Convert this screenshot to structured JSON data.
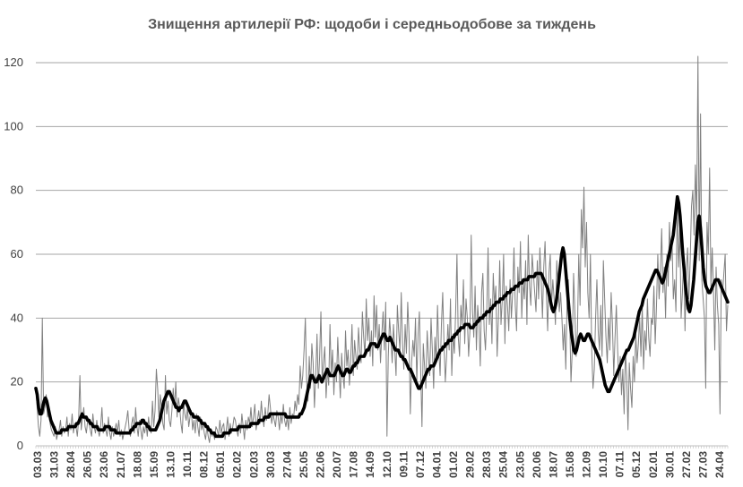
{
  "chart_data": {
    "type": "line",
    "title": "Знищення артилерії РФ: щодоби і середньодобове за тиждень",
    "xlabel": "",
    "ylabel": "",
    "ylim": [
      0,
      120
    ],
    "yticks": [
      "0",
      "20",
      "40",
      "60",
      "80",
      "100",
      "120"
    ],
    "grid": "horizontal",
    "legend": "none",
    "x_tick_labels": [
      "03.03",
      "31.03",
      "28.04",
      "26.05",
      "23.06",
      "21.07",
      "18.08",
      "15.09",
      "13.10",
      "10.11",
      "08.12",
      "05.01",
      "02.02",
      "02.03",
      "30.03",
      "27.04",
      "25.05",
      "22.06",
      "20.07",
      "17.08",
      "14.09",
      "12.10",
      "09.11",
      "07.12",
      "04.01",
      "01.02",
      "29.02",
      "28.03",
      "25.04",
      "23.05",
      "20.06",
      "18.07",
      "15.08",
      "12.09",
      "10.10",
      "07.11",
      "05.12",
      "02.01",
      "30.01",
      "27.02",
      "27.03",
      "24.04"
    ],
    "series": [
      {
        "role": "daily",
        "color": "#808080",
        "values": [
          18,
          12,
          6,
          3,
          8,
          40,
          10,
          12,
          16,
          9,
          11,
          7,
          5,
          4,
          3,
          6,
          2,
          4,
          5,
          8,
          3,
          6,
          4,
          5,
          9,
          3,
          7,
          5,
          10,
          4,
          7,
          6,
          3,
          8,
          22,
          5,
          9,
          12,
          6,
          4,
          8,
          7,
          5,
          3,
          10,
          6,
          4,
          8,
          5,
          3,
          6,
          12,
          4,
          7,
          5,
          3,
          9,
          4,
          2,
          6,
          3,
          5,
          7,
          4,
          8,
          3,
          5,
          2,
          4,
          6,
          8,
          11,
          5,
          3,
          7,
          9,
          4,
          12,
          6,
          3,
          8,
          5,
          2,
          6,
          4,
          7,
          3,
          9,
          5,
          4,
          14,
          6,
          11,
          24,
          18,
          9,
          16,
          12,
          7,
          5,
          22,
          10,
          14,
          8,
          6,
          11,
          18,
          12,
          20,
          9,
          15,
          12,
          7,
          4,
          14,
          10,
          8,
          12,
          6,
          9,
          11,
          5,
          8,
          4,
          10,
          6,
          3,
          9,
          5,
          7,
          4,
          2,
          6,
          3,
          1,
          5,
          3,
          4,
          2,
          6,
          5,
          3,
          8,
          4,
          6,
          7,
          2,
          5,
          9,
          3,
          7,
          4,
          6,
          9,
          8,
          5,
          3,
          7,
          4,
          10,
          6,
          2,
          8,
          5,
          9,
          7,
          12,
          6,
          9,
          13,
          5,
          8,
          11,
          7,
          14,
          9,
          6,
          12,
          8,
          10,
          16,
          12,
          7,
          10,
          8,
          6,
          11,
          9,
          5,
          10,
          7,
          13,
          8,
          6,
          9,
          5,
          12,
          7,
          10,
          9,
          14,
          11,
          16,
          13,
          25,
          18,
          22,
          30,
          40,
          20,
          14,
          28,
          18,
          32,
          26,
          12,
          22,
          35,
          18,
          28,
          42,
          20,
          26,
          31,
          15,
          24,
          19,
          38,
          22,
          30,
          16,
          26,
          20,
          34,
          24,
          15,
          29,
          22,
          18,
          36,
          25,
          30,
          19,
          27,
          38,
          22,
          33,
          28,
          24,
          37,
          30,
          26,
          42,
          34,
          28,
          46,
          33,
          40,
          28,
          36,
          25,
          47,
          34,
          44,
          30,
          38,
          26,
          35,
          42,
          30,
          45,
          3,
          28,
          40,
          34,
          26,
          38,
          30,
          22,
          44,
          36,
          30,
          48,
          32,
          24,
          38,
          29,
          45,
          35,
          10,
          26,
          33,
          28,
          40,
          20,
          35,
          42,
          24,
          6,
          32,
          25,
          18,
          36,
          28,
          22,
          40,
          30,
          18,
          34,
          26,
          44,
          30,
          22,
          38,
          48,
          32,
          20,
          28,
          38,
          30,
          46,
          22,
          35,
          29,
          42,
          60,
          34,
          28,
          44,
          38,
          52,
          32,
          46,
          40,
          28,
          36,
          66,
          42,
          34,
          50,
          30,
          44,
          38,
          25,
          48,
          54,
          36,
          30,
          42,
          62,
          38,
          46,
          32,
          54,
          44,
          50,
          28,
          40,
          58,
          38,
          46,
          60,
          32,
          50,
          44,
          36,
          52,
          40,
          48,
          62,
          44,
          36,
          56,
          48,
          64,
          40,
          52,
          46,
          58,
          38,
          66,
          50,
          44,
          60,
          54,
          48,
          42,
          58,
          46,
          62,
          52,
          40,
          56,
          64,
          48,
          36,
          54,
          60,
          44,
          52,
          46,
          38,
          58,
          50,
          42,
          48,
          40,
          30,
          38,
          24,
          46,
          52,
          40,
          20,
          30,
          54,
          42,
          28,
          36,
          60,
          44,
          74,
          62,
          81,
          56,
          70,
          48,
          40,
          60,
          30,
          18,
          24,
          40,
          52,
          36,
          30,
          44,
          28,
          58,
          46,
          34,
          26,
          40,
          30,
          48,
          38,
          22,
          34,
          44,
          30,
          20,
          28,
          16,
          24,
          10,
          30,
          22,
          5,
          26,
          18,
          12,
          28,
          20,
          35,
          26,
          32,
          40,
          28,
          44,
          24,
          36,
          30,
          46,
          34,
          28,
          40,
          38,
          50,
          32,
          44,
          60,
          46,
          54,
          68,
          48,
          56,
          40,
          60,
          50,
          70,
          58,
          64,
          46,
          52,
          42,
          78,
          56,
          68,
          40,
          48,
          60,
          36,
          55,
          62,
          46,
          58,
          75,
          80,
          66,
          88,
          70,
          122,
          58,
          104,
          52,
          46,
          40,
          18,
          70,
          60,
          87,
          50,
          62,
          48,
          30,
          56,
          44,
          38,
          10,
          52,
          48,
          54,
          60,
          36,
          44
        ]
      },
      {
        "role": "weekly-average",
        "color": "#000000",
        "values": [
          18,
          16,
          12,
          10,
          10,
          12,
          14,
          15,
          14,
          12,
          10,
          8,
          7,
          6,
          5,
          4,
          4,
          4,
          4,
          5,
          5,
          5,
          5,
          5,
          6,
          6,
          6,
          6,
          6,
          6,
          7,
          7,
          8,
          9,
          10,
          9,
          9,
          9,
          8,
          8,
          7,
          7,
          6,
          6,
          6,
          6,
          5,
          5,
          5,
          5,
          5,
          6,
          6,
          6,
          6,
          5,
          5,
          5,
          5,
          4,
          4,
          4,
          4,
          4,
          4,
          4,
          4,
          4,
          4,
          4,
          5,
          5,
          6,
          6,
          7,
          7,
          7,
          7,
          8,
          8,
          7,
          7,
          6,
          6,
          5,
          5,
          5,
          5,
          5,
          6,
          7,
          8,
          10,
          12,
          14,
          15,
          16,
          17,
          17,
          16,
          15,
          14,
          13,
          12,
          12,
          11,
          12,
          12,
          13,
          14,
          14,
          13,
          12,
          11,
          10,
          10,
          9,
          9,
          9,
          9,
          8,
          8,
          7,
          7,
          7,
          6,
          6,
          5,
          5,
          4,
          4,
          4,
          3,
          3,
          3,
          3,
          3,
          3,
          4,
          4,
          4,
          4,
          4,
          5,
          5,
          5,
          5,
          5,
          5,
          6,
          6,
          6,
          6,
          6,
          6,
          6,
          6,
          6,
          7,
          7,
          7,
          7,
          7,
          7,
          8,
          8,
          8,
          8,
          9,
          9,
          9,
          9,
          10,
          10,
          10,
          10,
          10,
          10,
          10,
          10,
          10,
          10,
          10,
          10,
          9,
          9,
          9,
          9,
          9,
          9,
          9,
          9,
          9,
          9,
          10,
          10,
          11,
          12,
          14,
          16,
          18,
          20,
          22,
          22,
          21,
          20,
          20,
          21,
          22,
          21,
          20,
          21,
          22,
          23,
          24,
          23,
          22,
          22,
          22,
          22,
          23,
          24,
          25,
          24,
          23,
          22,
          22,
          23,
          24,
          24,
          23,
          23,
          24,
          25,
          25,
          26,
          26,
          27,
          28,
          28,
          28,
          28,
          29,
          30,
          30,
          31,
          32,
          32,
          32,
          32,
          31,
          31,
          32,
          33,
          34,
          35,
          35,
          34,
          33,
          33,
          34,
          33,
          32,
          31,
          30,
          30,
          30,
          29,
          28,
          28,
          27,
          27,
          26,
          25,
          24,
          24,
          23,
          22,
          21,
          20,
          19,
          18,
          18,
          19,
          20,
          21,
          22,
          23,
          24,
          24,
          25,
          25,
          25,
          26,
          27,
          28,
          29,
          30,
          30,
          31,
          31,
          32,
          32,
          33,
          33,
          33,
          34,
          34,
          35,
          35,
          36,
          36,
          37,
          37,
          37,
          38,
          38,
          38,
          38,
          37,
          37,
          37,
          38,
          38,
          39,
          39,
          40,
          40,
          40,
          41,
          41,
          42,
          42,
          42,
          43,
          43,
          44,
          44,
          45,
          45,
          45,
          46,
          46,
          46,
          47,
          47,
          48,
          48,
          48,
          49,
          49,
          49,
          50,
          50,
          50,
          51,
          51,
          51,
          52,
          52,
          52,
          52,
          53,
          53,
          53,
          53,
          53,
          54,
          54,
          54,
          54,
          54,
          53,
          52,
          51,
          50,
          49,
          47,
          45,
          43,
          42,
          43,
          45,
          48,
          52,
          56,
          60,
          62,
          60,
          55,
          50,
          45,
          40,
          36,
          33,
          30,
          29,
          30,
          32,
          34,
          35,
          34,
          33,
          33,
          34,
          35,
          35,
          34,
          33,
          32,
          31,
          30,
          29,
          28,
          27,
          25,
          23,
          21,
          19,
          18,
          17,
          17,
          18,
          19,
          20,
          21,
          22,
          23,
          24,
          25,
          26,
          27,
          28,
          29,
          30,
          30,
          31,
          32,
          33,
          34,
          36,
          38,
          40,
          42,
          43,
          44,
          46,
          47,
          48,
          49,
          50,
          51,
          52,
          53,
          54,
          55,
          55,
          54,
          53,
          52,
          51,
          52,
          54,
          56,
          58,
          60,
          62,
          64,
          66,
          70,
          74,
          78,
          76,
          72,
          66,
          60,
          55,
          50,
          46,
          43,
          42,
          44,
          48,
          52,
          58,
          64,
          70,
          72,
          68,
          62,
          56,
          52,
          50,
          49,
          48,
          48,
          49,
          50,
          51,
          52,
          52,
          52,
          51,
          50,
          49,
          48,
          47,
          46,
          45
        ]
      }
    ]
  }
}
